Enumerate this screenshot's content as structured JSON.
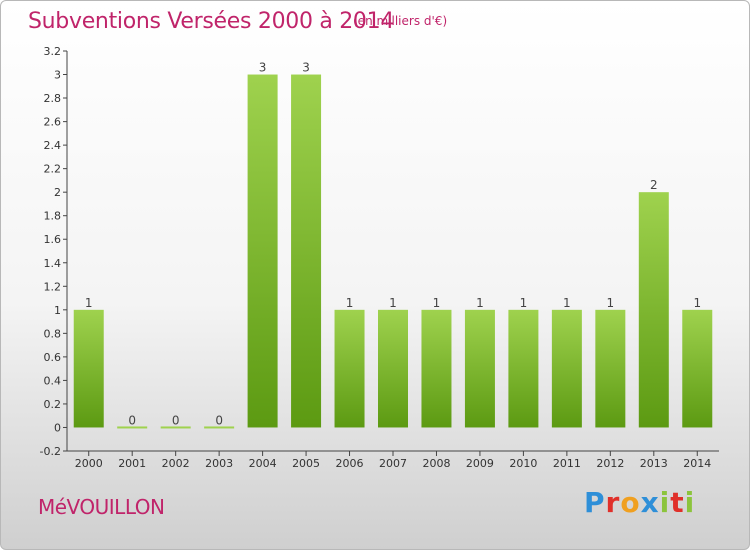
{
  "header": {
    "title": "Subventions Versées 2000 à 2014",
    "unit": "(en milliers d'€)"
  },
  "footer": {
    "commune": "MéVOUILLON",
    "logo": "Proxiti"
  },
  "colors": {
    "title": "#c0246a",
    "bar_top": "#9fd24e",
    "bar_bottom": "#5c9a12",
    "logo_letters": [
      "#2e8fd8",
      "#e0302a",
      "#f0a020",
      "#2e8fd8",
      "#8cc43c",
      "#e0302a",
      "#8cc43c"
    ]
  },
  "chart_data": {
    "type": "bar",
    "categories": [
      "2000",
      "2001",
      "2002",
      "2003",
      "2004",
      "2005",
      "2006",
      "2007",
      "2008",
      "2009",
      "2010",
      "2011",
      "2012",
      "2013",
      "2014"
    ],
    "values": [
      1,
      0,
      0,
      0,
      3,
      3,
      1,
      1,
      1,
      1,
      1,
      1,
      1,
      2,
      1
    ],
    "data_labels": [
      "1",
      "0",
      "0",
      "0",
      "3",
      "3",
      "1",
      "1",
      "1",
      "1",
      "1",
      "1",
      "1",
      "2",
      "1"
    ],
    "ylim": [
      -0.2,
      3.2
    ],
    "yticks": [
      -0.2,
      0,
      0.2,
      0.4,
      0.6,
      0.8,
      1,
      1.2,
      1.4,
      1.6,
      1.8,
      2,
      2.2,
      2.4,
      2.6,
      2.8,
      3,
      3.2
    ],
    "ytick_labels": [
      "-0.2",
      "0",
      "0.2",
      "0.4",
      "0.6",
      "0.8",
      "1",
      "1.2",
      "1.4",
      "1.6",
      "1.8",
      "2",
      "2.2",
      "2.4",
      "2.6",
      "2.8",
      "3",
      "3.2"
    ],
    "grid": false,
    "title": "Subventions Versées 2000 à 2014",
    "xlabel": "",
    "ylabel": ""
  }
}
